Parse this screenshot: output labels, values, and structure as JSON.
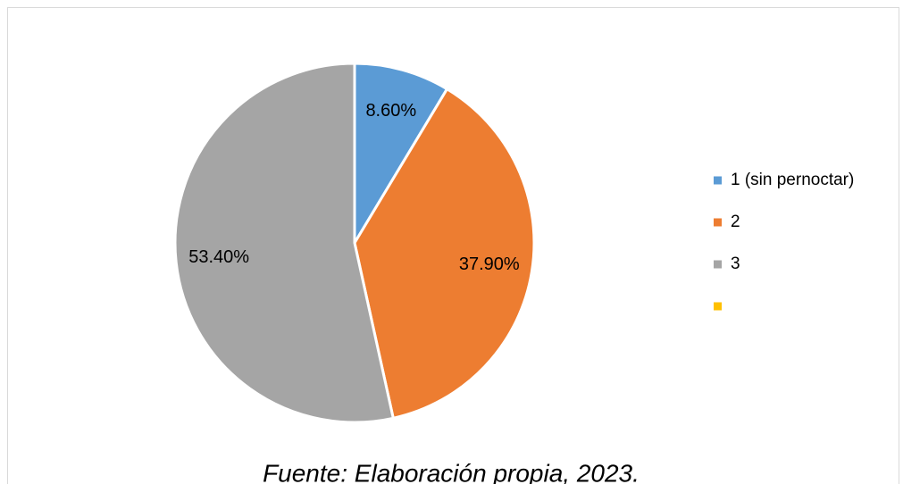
{
  "chart_data": {
    "type": "pie",
    "categories": [
      "1 (sin pernoctar)",
      "2",
      "3",
      null
    ],
    "values": [
      8.6,
      37.9,
      53.4,
      0
    ],
    "value_labels": [
      "8.60%",
      "37.90%",
      "53.40%",
      null
    ],
    "colors": [
      "#5b9bd5",
      "#ed7d31",
      "#a5a5a5",
      "#ffc000"
    ],
    "legend": "right",
    "caption": "Fuente: Elaboración propia, 2023."
  }
}
